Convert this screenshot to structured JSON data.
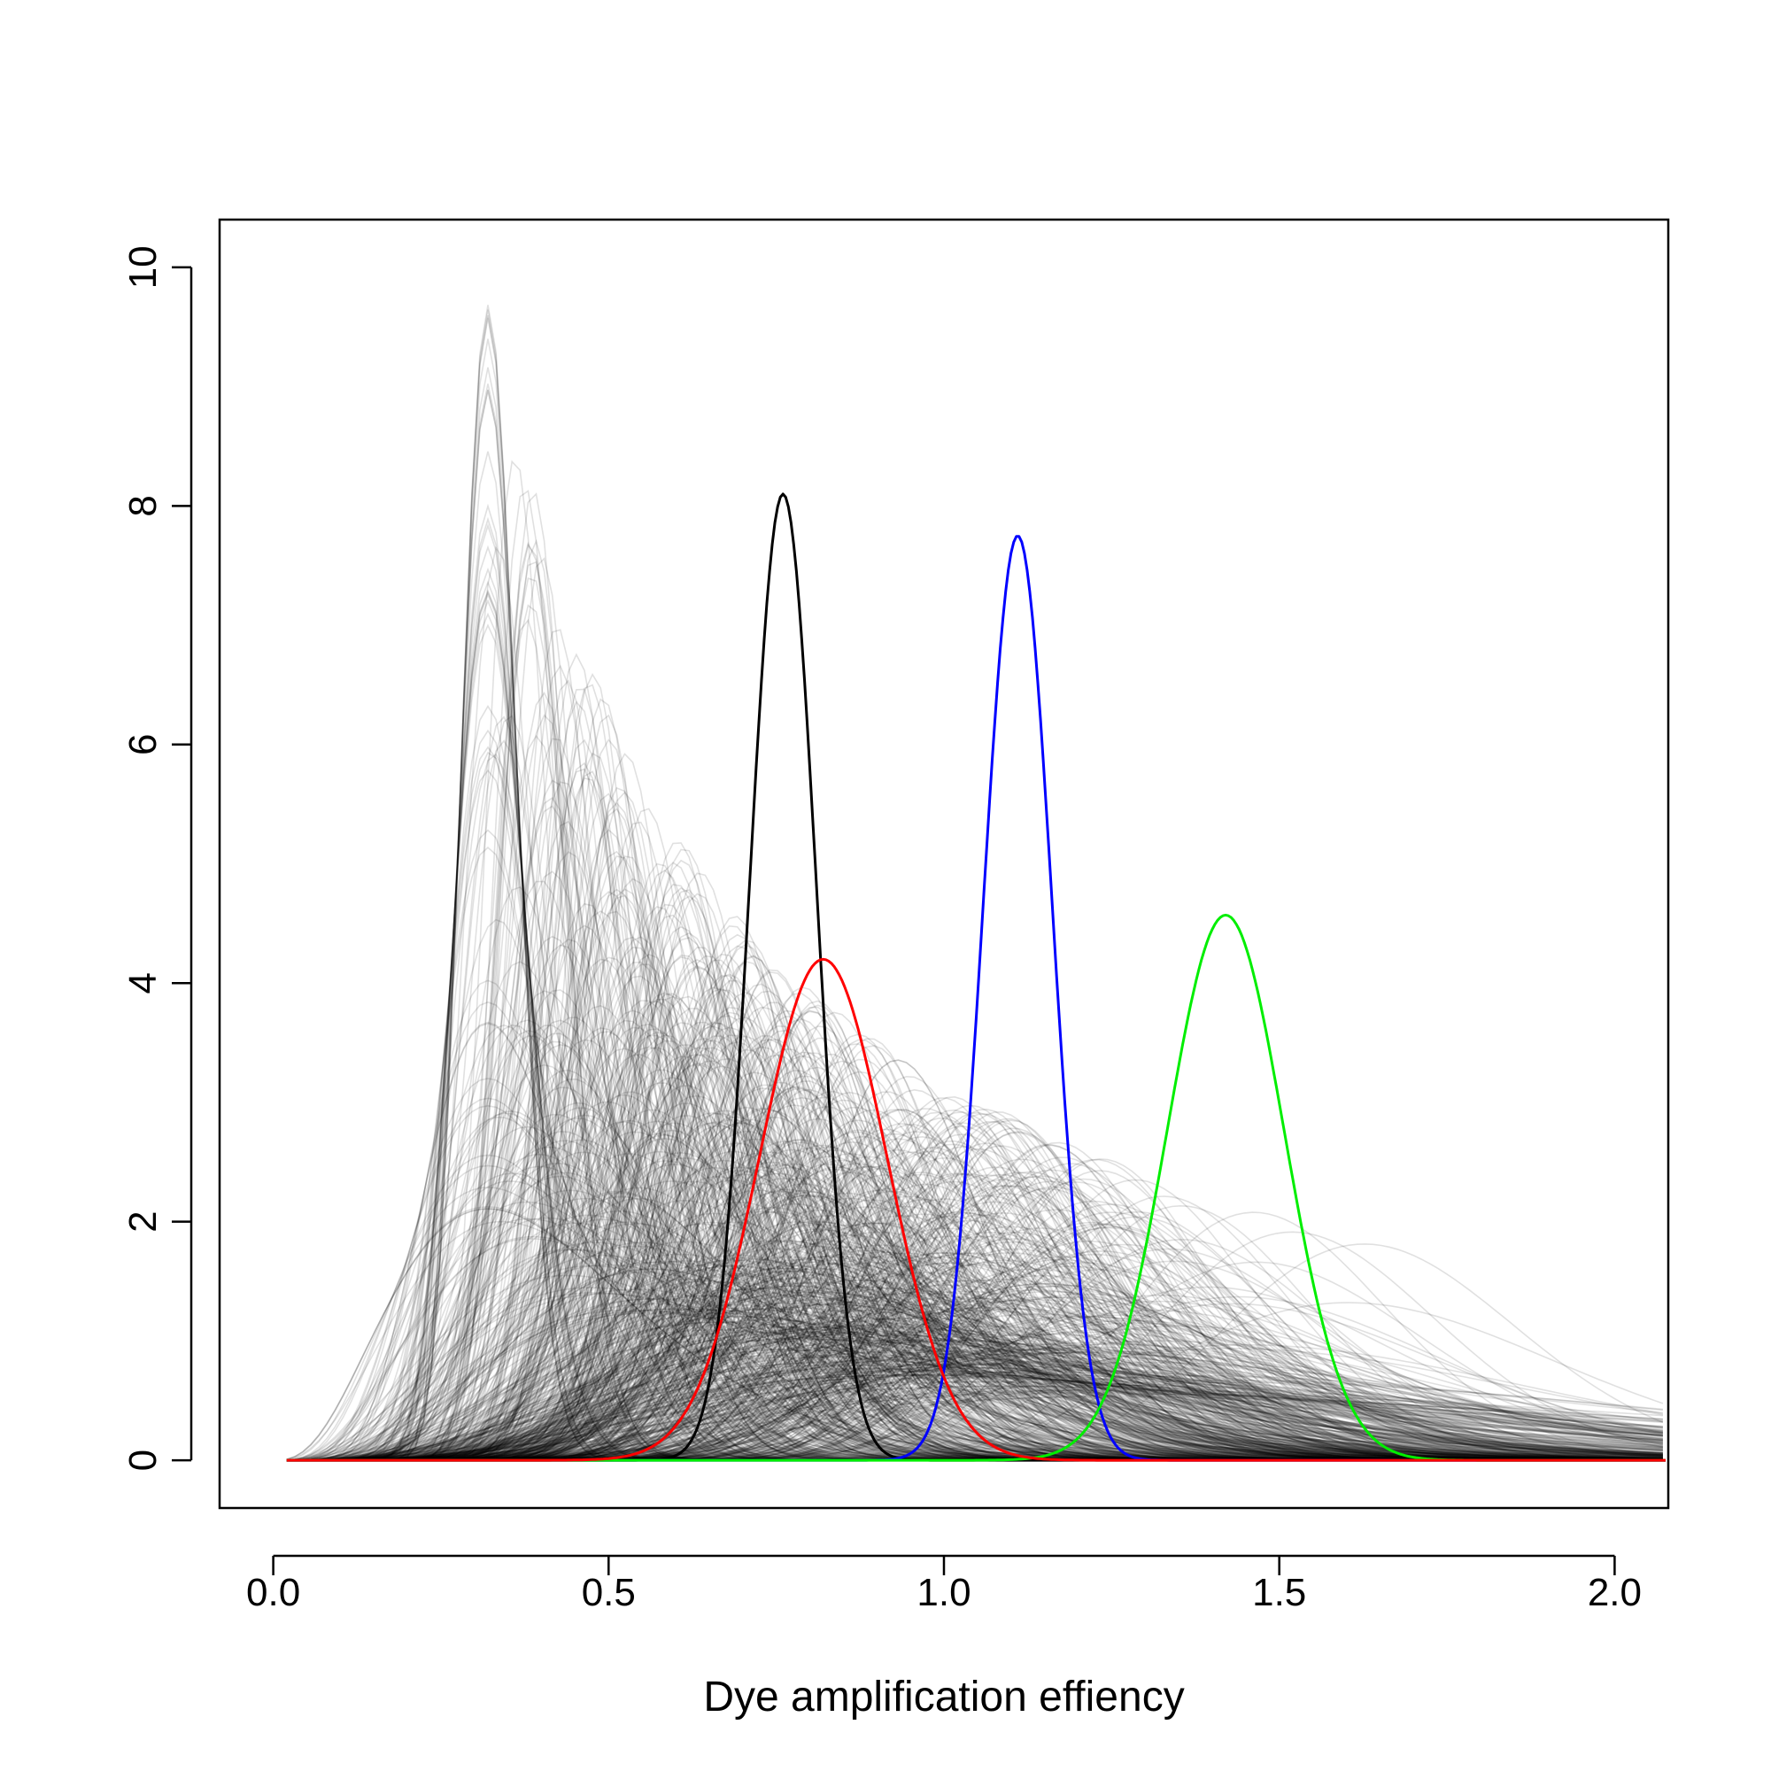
{
  "chart_data": {
    "type": "line",
    "title": "",
    "xlabel": "Dye amplification effiency",
    "ylabel": "",
    "xlim": [
      -0.08,
      2.08
    ],
    "ylim": [
      -0.4,
      10.4
    ],
    "x_ticks": [
      0.0,
      0.5,
      1.0,
      1.5,
      2.0
    ],
    "x_tick_labels": [
      "0.0",
      "0.5",
      "1.0",
      "1.5",
      "2.0"
    ],
    "y_ticks": [
      0,
      2,
      4,
      6,
      8,
      10
    ],
    "y_tick_labels": [
      "0",
      "2",
      "4",
      "6",
      "8",
      "10"
    ],
    "grid": false,
    "background_curves": {
      "count": 900,
      "color": "#000000",
      "opacity": 0.12,
      "note_count_approximate": true
    },
    "series": [
      {
        "color": "#000000",
        "peak_x": 0.76,
        "peak_y": 8.1,
        "sd": 0.049
      },
      {
        "color": "#0000ff",
        "peak_x": 1.11,
        "peak_y": 7.75,
        "sd": 0.051
      },
      {
        "color": "#00ee00",
        "peak_x": 1.42,
        "peak_y": 4.57,
        "sd": 0.087
      },
      {
        "color": "#ff0000",
        "peak_x": 0.82,
        "peak_y": 4.2,
        "sd": 0.095
      }
    ]
  }
}
